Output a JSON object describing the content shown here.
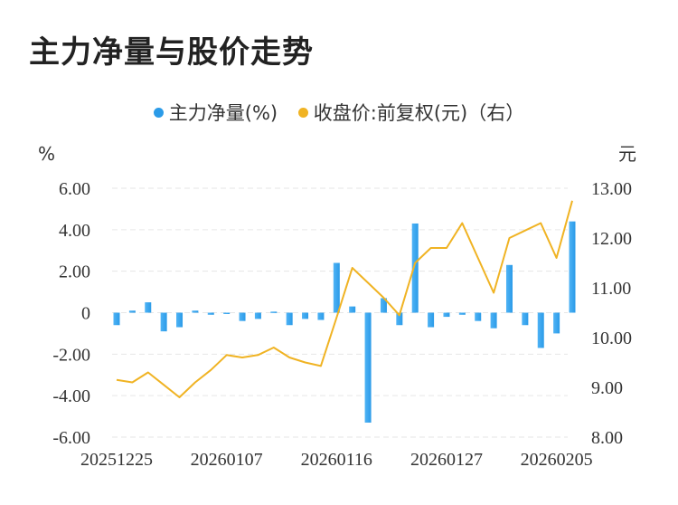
{
  "title": "主力净量与股价走势",
  "colors": {
    "bar": "#2b9be8",
    "line": "#f0b323",
    "grid": "#e6e6e6"
  },
  "chart_data": {
    "type": "bar+line",
    "legend": [
      {
        "name": "主力净量(%)",
        "color": "#2b9be8",
        "marker": "dot"
      },
      {
        "name": "收盘价:前复权(元)（右）",
        "color": "#f0b323",
        "marker": "dot"
      }
    ],
    "left_unit": "%",
    "right_unit": "元",
    "left_ticks": [
      "6.00",
      "4.00",
      "2.00",
      "0",
      "-2.00",
      "-4.00",
      "-6.00"
    ],
    "right_ticks": [
      "13.00",
      "12.00",
      "11.00",
      "10.00",
      "9.00",
      "8.00"
    ],
    "ylim_left": [
      -6,
      6
    ],
    "ylim_right": [
      8,
      13
    ],
    "x_tick_labels": [
      "20251225",
      "20260107",
      "20260116",
      "20260127",
      "20260205"
    ],
    "x_tick_indices": [
      0,
      7,
      14,
      21,
      28
    ],
    "grid": "horizontal dashed",
    "series": [
      {
        "name": "主力净量(%)",
        "kind": "bar",
        "axis": "left",
        "values": [
          -0.6,
          0.1,
          0.5,
          -0.9,
          -0.7,
          0.1,
          -0.1,
          -0.05,
          -0.4,
          -0.3,
          0.05,
          -0.6,
          -0.3,
          -0.35,
          2.4,
          0.3,
          -5.3,
          0.7,
          -0.6,
          4.3,
          -0.7,
          -0.2,
          -0.1,
          -0.4,
          -0.75,
          2.3,
          -0.6,
          -1.7,
          -1.0,
          4.4
        ]
      },
      {
        "name": "收盘价:前复权(元)（右）",
        "kind": "line",
        "axis": "right",
        "values": [
          9.15,
          9.1,
          9.3,
          9.05,
          8.8,
          9.1,
          9.35,
          9.65,
          9.6,
          9.65,
          9.8,
          9.6,
          9.5,
          9.43,
          10.4,
          11.4,
          11.1,
          10.8,
          10.45,
          11.5,
          11.8,
          11.8,
          12.3,
          11.6,
          10.9,
          12.0,
          12.15,
          12.3,
          11.6,
          12.75
        ]
      }
    ]
  }
}
